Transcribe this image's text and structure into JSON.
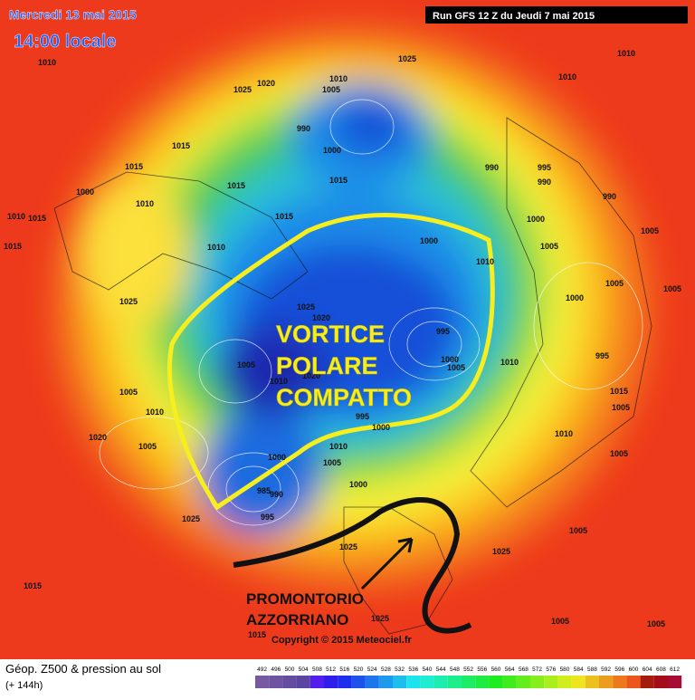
{
  "header": {
    "date": "Mercredi 13 mai 2015",
    "time": "14:00 locale",
    "run": "Run GFS 12 Z du Jeudi 7 mai 2015"
  },
  "annotations": {
    "vortex": [
      "VORTICE",
      "POLARE",
      "COMPATTO"
    ],
    "ridge": [
      "PROMONTORIO",
      "AZZORRIANO"
    ]
  },
  "copyright": "Copyright © 2015 Meteociel.fr",
  "footer": {
    "title": "Géop. Z500 & pression au sol",
    "subtitle": "(+ 144h)"
  },
  "colorbar": {
    "ticks": [
      492,
      496,
      500,
      504,
      508,
      512,
      516,
      520,
      524,
      528,
      532,
      536,
      540,
      544,
      548,
      552,
      556,
      560,
      564,
      568,
      572,
      576,
      580,
      584,
      588,
      592,
      596,
      600,
      604,
      608,
      612
    ]
  },
  "isobar_labels": [
    "1010",
    "1025",
    "1010",
    "1010",
    "1010",
    "1005",
    "1025",
    "1020",
    "990",
    "1000",
    "1015",
    "1015",
    "990",
    "995",
    "990",
    "990",
    "1000",
    "1010",
    "1015",
    "1015",
    "1010",
    "1015",
    "1015",
    "1000",
    "1005",
    "1000",
    "1010",
    "1005",
    "1015",
    "1010",
    "1025",
    "1025",
    "1020",
    "1000",
    "1005",
    "1005",
    "995",
    "995",
    "1005",
    "1000",
    "1005",
    "1010",
    "1020",
    "1010",
    "1015",
    "1005",
    "1010",
    "995",
    "1000",
    "1005",
    "1020",
    "1005",
    "1010",
    "1000",
    "1005",
    "1010",
    "1000",
    "990",
    "985",
    "995",
    "1025",
    "1005",
    "1005",
    "1025",
    "1025",
    "1015",
    "1025",
    "1005",
    "1015",
    "1005"
  ]
}
